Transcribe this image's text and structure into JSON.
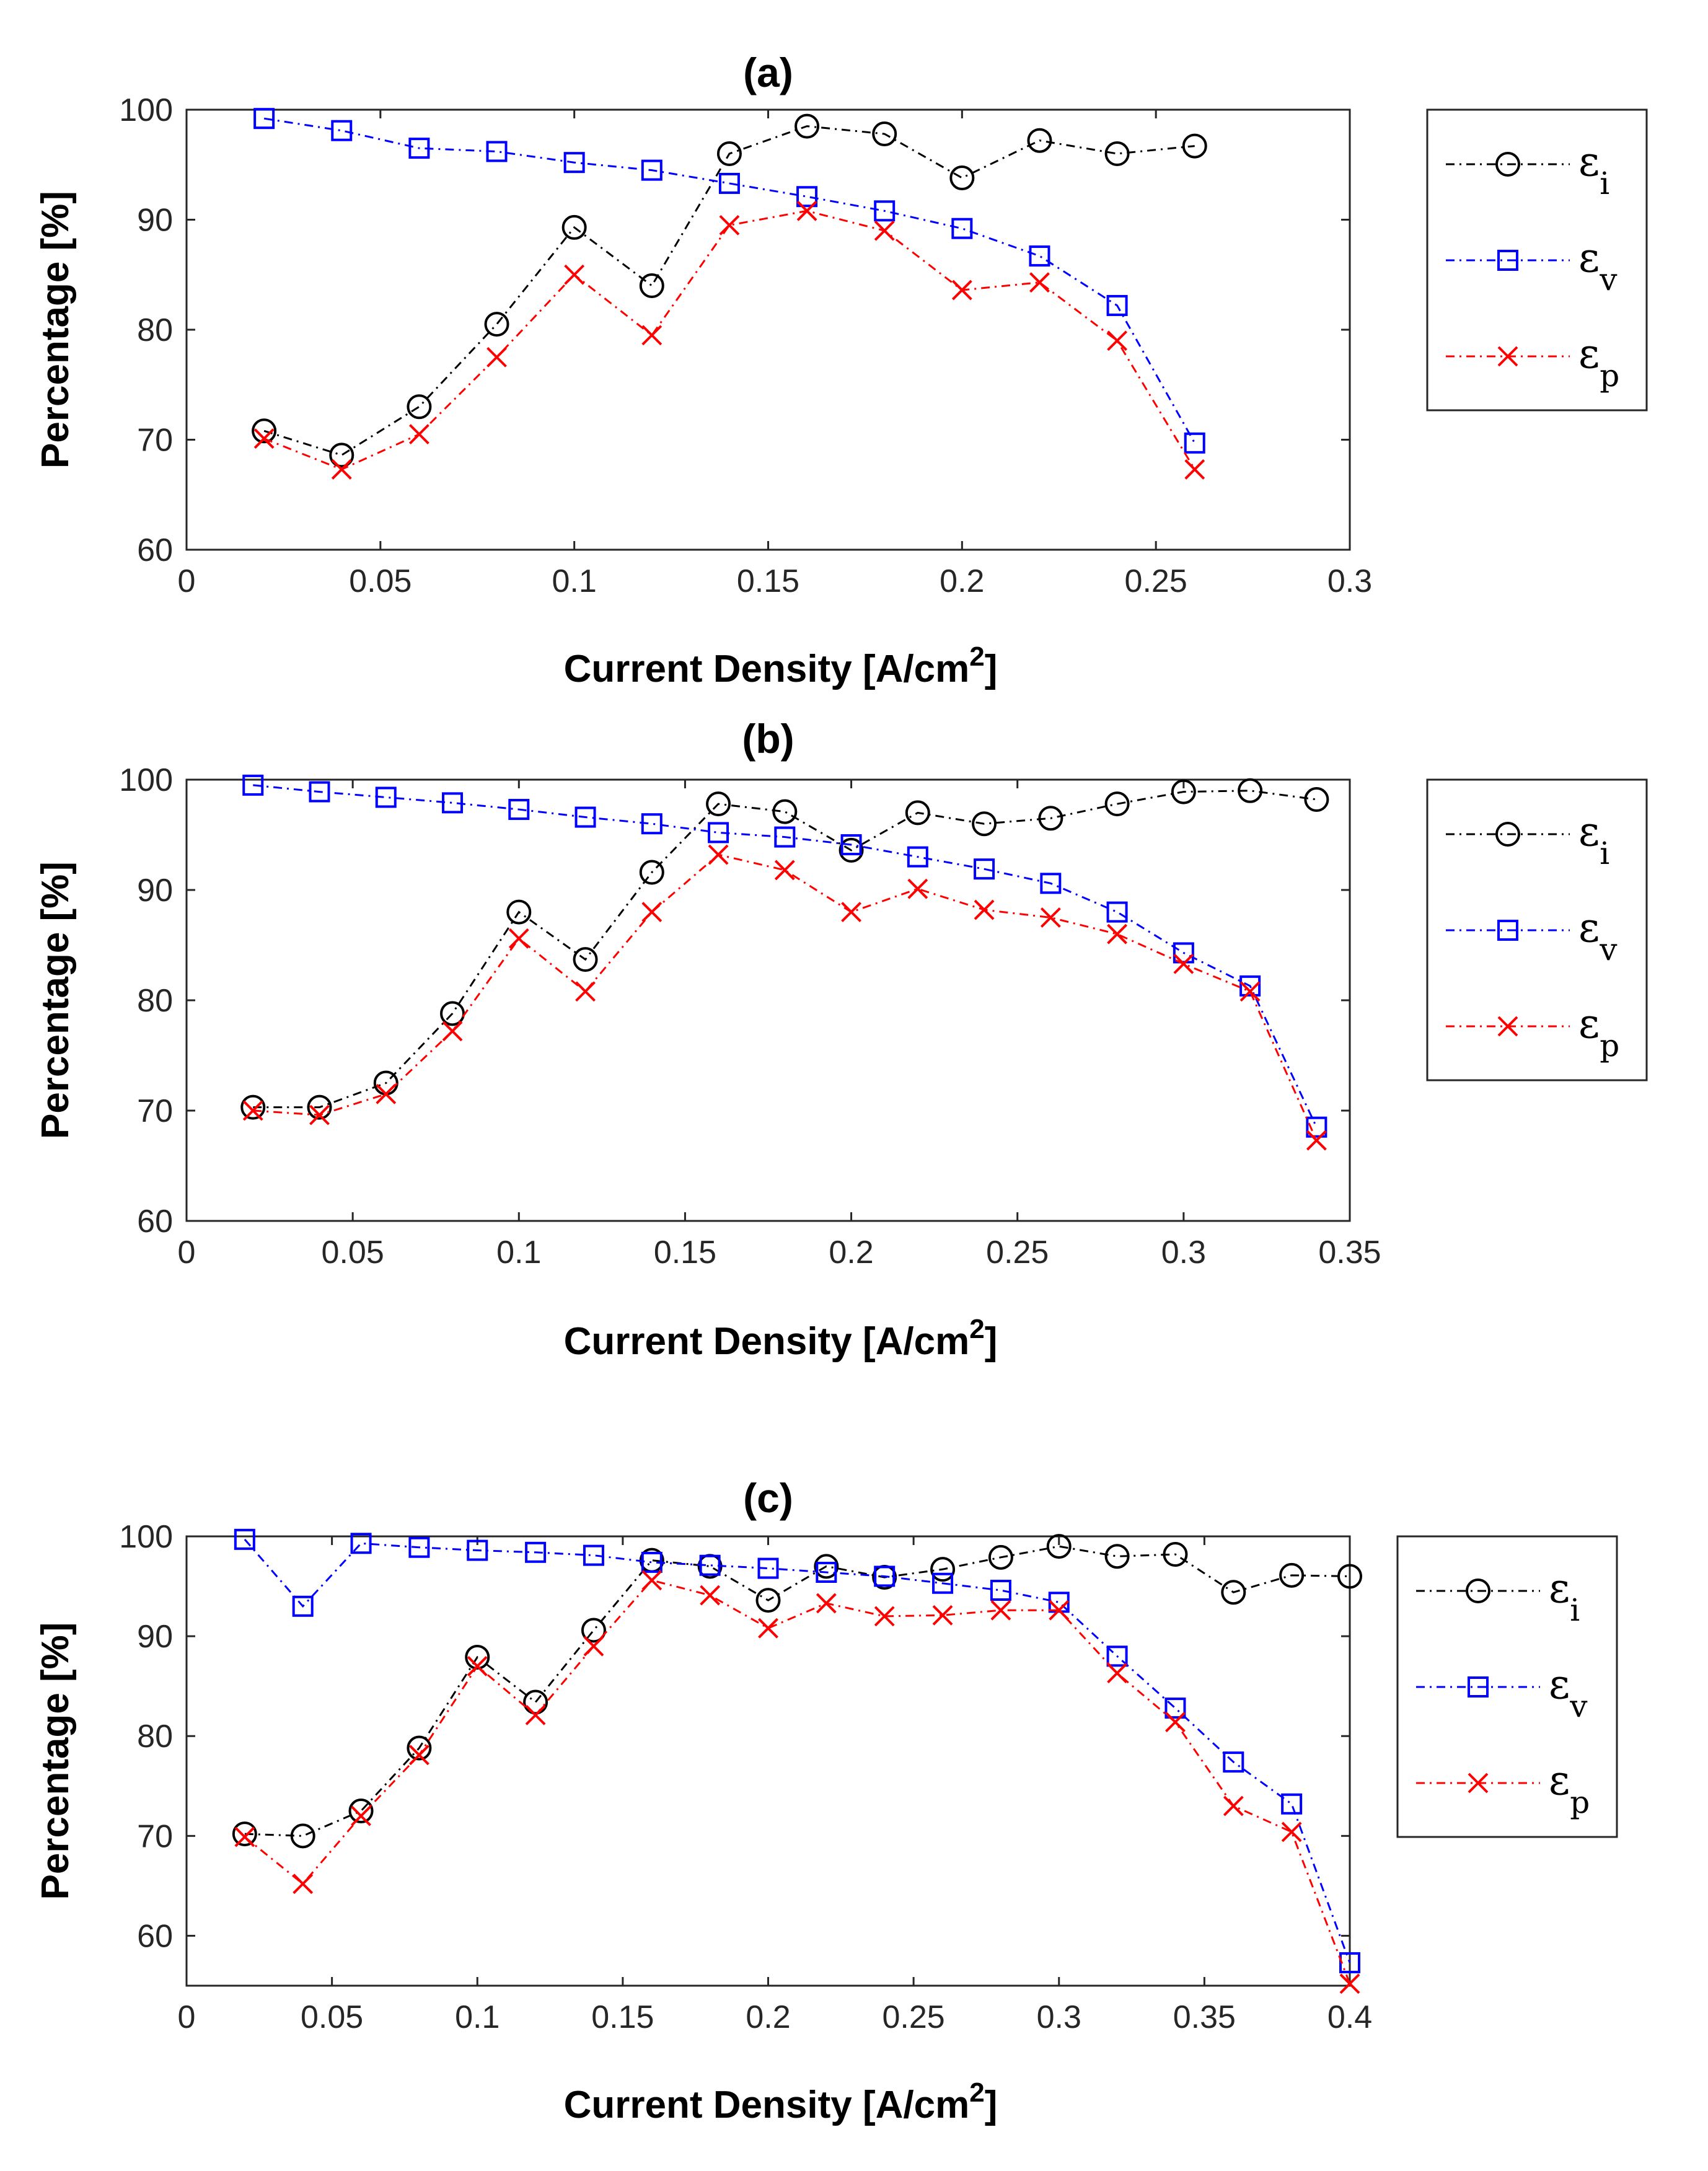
{
  "chart_data": [
    {
      "type": "line",
      "title": "(a)",
      "xlabel": "Current Density [A/cm",
      "xlabel_sup": "2",
      "xlabel_end": "]",
      "ylabel": "Percentage [%]",
      "xlim": [
        0,
        0.3
      ],
      "ylim": [
        60,
        100
      ],
      "xticks": [
        0,
        0.05,
        0.1,
        0.15,
        0.2,
        0.25,
        0.3
      ],
      "xtick_labels": [
        "0",
        "0.05",
        "0.1",
        "0.15",
        "0.2",
        "0.25",
        "0.3"
      ],
      "yticks": [
        60,
        70,
        80,
        90,
        100
      ],
      "ytick_labels": [
        "60",
        "70",
        "80",
        "90",
        "100"
      ],
      "x": [
        0.02,
        0.04,
        0.06,
        0.08,
        0.1,
        0.12,
        0.14,
        0.16,
        0.18,
        0.2,
        0.22,
        0.24,
        0.26
      ],
      "series": [
        {
          "name": "ε_i",
          "symbol": "ε",
          "sub": "i",
          "color": "#000000",
          "marker": "circle",
          "values": [
            70.8,
            68.6,
            73.0,
            80.5,
            89.3,
            84.0,
            96.0,
            98.5,
            97.8,
            93.8,
            97.2,
            96.0,
            96.7
          ]
        },
        {
          "name": "ε_v",
          "symbol": "ε",
          "sub": "v",
          "color": "#0000ff",
          "marker": "square",
          "values": [
            99.2,
            98.1,
            96.5,
            96.2,
            95.2,
            94.5,
            93.3,
            92.1,
            90.8,
            89.2,
            86.7,
            82.2,
            69.7
          ]
        },
        {
          "name": "ε_p",
          "symbol": "ε",
          "sub": "p",
          "color": "#ff0000",
          "marker": "x",
          "values": [
            70.1,
            67.3,
            70.5,
            77.5,
            85.0,
            79.5,
            89.5,
            90.8,
            89.0,
            83.6,
            84.3,
            79.0,
            67.3
          ]
        }
      ]
    },
    {
      "type": "line",
      "title": "(b)",
      "xlabel": "Current Density [A/cm",
      "xlabel_sup": "2",
      "xlabel_end": "]",
      "ylabel": "Percentage [%]",
      "xlim": [
        0,
        0.35
      ],
      "ylim": [
        60,
        100
      ],
      "xticks": [
        0,
        0.05,
        0.1,
        0.15,
        0.2,
        0.25,
        0.3,
        0.35
      ],
      "xtick_labels": [
        "0",
        "0.05",
        "0.1",
        "0.15",
        "0.2",
        "0.25",
        "0.3",
        "0.35"
      ],
      "yticks": [
        60,
        70,
        80,
        90,
        100
      ],
      "ytick_labels": [
        "60",
        "70",
        "80",
        "90",
        "100"
      ],
      "x": [
        0.02,
        0.04,
        0.06,
        0.08,
        0.1,
        0.12,
        0.14,
        0.16,
        0.18,
        0.2,
        0.22,
        0.24,
        0.26,
        0.28,
        0.3,
        0.32,
        0.34
      ],
      "series": [
        {
          "name": "ε_i",
          "symbol": "ε",
          "sub": "i",
          "color": "#000000",
          "marker": "circle",
          "values": [
            70.3,
            70.3,
            72.5,
            78.8,
            88.0,
            83.7,
            91.6,
            97.8,
            97.1,
            93.6,
            97.0,
            96.0,
            96.5,
            97.8,
            98.9,
            99.0,
            98.2
          ]
        },
        {
          "name": "ε_v",
          "symbol": "ε",
          "sub": "v",
          "color": "#0000ff",
          "marker": "square",
          "values": [
            99.5,
            98.9,
            98.4,
            97.9,
            97.3,
            96.6,
            96.0,
            95.2,
            94.8,
            94.1,
            93.0,
            91.9,
            90.6,
            88.0,
            84.3,
            81.3,
            68.5
          ]
        },
        {
          "name": "ε_p",
          "symbol": "ε",
          "sub": "p",
          "color": "#ff0000",
          "marker": "x",
          "values": [
            70.0,
            69.6,
            71.5,
            77.2,
            85.6,
            80.8,
            88.0,
            93.2,
            91.8,
            88.0,
            90.1,
            88.2,
            87.5,
            86.0,
            83.3,
            80.8,
            67.3
          ]
        }
      ]
    },
    {
      "type": "line",
      "title": "(c)",
      "xlabel": "Current Density [A/cm",
      "xlabel_sup": "2",
      "xlabel_end": "]",
      "ylabel": "Percentage [%]",
      "xlim": [
        0,
        0.4
      ],
      "ylim": [
        55,
        100
      ],
      "xticks": [
        0,
        0.05,
        0.1,
        0.15,
        0.2,
        0.25,
        0.3,
        0.35,
        0.4
      ],
      "xtick_labels": [
        "0",
        "0.05",
        "0.1",
        "0.15",
        "0.2",
        "0.25",
        "0.3",
        "0.35",
        "0.4"
      ],
      "yticks": [
        60,
        70,
        80,
        90,
        100
      ],
      "ytick_labels": [
        "60",
        "70",
        "80",
        "90",
        "100"
      ],
      "x": [
        0.02,
        0.04,
        0.06,
        0.08,
        0.1,
        0.12,
        0.14,
        0.16,
        0.18,
        0.2,
        0.22,
        0.24,
        0.26,
        0.28,
        0.3,
        0.32,
        0.34,
        0.36,
        0.38,
        0.4
      ],
      "series": [
        {
          "name": "ε_i",
          "symbol": "ε",
          "sub": "i",
          "color": "#000000",
          "marker": "circle",
          "values": [
            70.2,
            70.0,
            72.5,
            78.8,
            87.9,
            83.4,
            90.6,
            97.6,
            97.0,
            93.6,
            97.0,
            95.9,
            96.7,
            97.9,
            99.0,
            98.0,
            98.2,
            94.4,
            96.1,
            96.0
          ]
        },
        {
          "name": "ε_v",
          "symbol": "ε",
          "sub": "v",
          "color": "#0000ff",
          "marker": "square",
          "values": [
            99.7,
            93.0,
            99.3,
            98.9,
            98.6,
            98.4,
            98.1,
            97.4,
            97.1,
            96.8,
            96.4,
            96.0,
            95.3,
            94.6,
            93.4,
            88.0,
            82.8,
            77.4,
            73.2,
            57.3
          ]
        },
        {
          "name": "ε_p",
          "symbol": "ε",
          "sub": "p",
          "color": "#ff0000",
          "marker": "x",
          "values": [
            69.9,
            65.2,
            72.0,
            78.1,
            87.0,
            82.1,
            89.0,
            95.6,
            94.1,
            90.8,
            93.3,
            92.0,
            92.1,
            92.6,
            92.6,
            86.3,
            81.4,
            73.0,
            70.4,
            55.2
          ]
        }
      ]
    }
  ]
}
